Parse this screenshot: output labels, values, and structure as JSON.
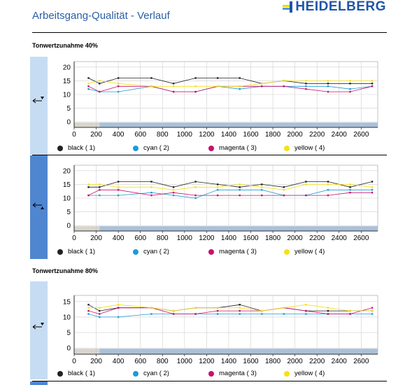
{
  "header": {
    "title": "Arbeitsgang-Qualität - Verlauf",
    "logo_text": "HEIDELBERG",
    "logo_color": "#1f56a6",
    "logo_accent_colors": [
      "#f2d70a",
      "#4f9fd8"
    ]
  },
  "legend": [
    {
      "label": "black ( 1)",
      "color": "#222222"
    },
    {
      "label": "cyan ( 2)",
      "color": "#1c9bd8"
    },
    {
      "label": "magenta ( 3)",
      "color": "#c8106e"
    },
    {
      "label": "yellow ( 4)",
      "color": "#f5e01a"
    }
  ],
  "sections": [
    {
      "title": "Tonwertzunahme 40%"
    },
    {
      "title": "Tonwertzunahme 80%"
    }
  ],
  "chart_data": [
    {
      "type": "line",
      "section": "Tonwertzunahme 40%",
      "x": [
        130,
        230,
        400,
        700,
        900,
        1100,
        1300,
        1500,
        1700,
        1900,
        2100,
        2300,
        2500,
        2700
      ],
      "xlim": [
        0,
        2750
      ],
      "ylim": [
        -2,
        22
      ],
      "xticks": [
        0,
        200,
        400,
        600,
        800,
        1000,
        1200,
        1400,
        1600,
        1800,
        2000,
        2200,
        2400,
        2600
      ],
      "yticks": [
        0,
        5,
        10,
        15,
        20
      ],
      "grid": true,
      "series": [
        {
          "name": "black ( 1)",
          "color": "#222222",
          "values": [
            16,
            14,
            16,
            16,
            14,
            16,
            16,
            16,
            14,
            15,
            14,
            14,
            14,
            14
          ]
        },
        {
          "name": "cyan ( 2)",
          "color": "#1c9bd8",
          "values": [
            12,
            11,
            11,
            13,
            11,
            11,
            13,
            12,
            13,
            13,
            13,
            13,
            12,
            13
          ]
        },
        {
          "name": "magenta ( 3)",
          "color": "#c8106e",
          "values": [
            13,
            11,
            13,
            13,
            11,
            11,
            13,
            13,
            13,
            13,
            12,
            11,
            11,
            13
          ]
        },
        {
          "name": "yellow ( 4)",
          "color": "#f5e01a",
          "values": [
            14,
            15,
            14,
            13,
            13,
            13,
            13,
            13,
            14,
            15,
            15,
            15,
            15,
            15
          ]
        }
      ]
    },
    {
      "type": "line",
      "section": "Tonwertzunahme 40%",
      "x": [
        130,
        230,
        400,
        700,
        900,
        1100,
        1300,
        1500,
        1700,
        1900,
        2100,
        2300,
        2500,
        2700
      ],
      "xlim": [
        0,
        2750
      ],
      "ylim": [
        -2,
        22
      ],
      "xticks": [
        0,
        200,
        400,
        600,
        800,
        1000,
        1200,
        1400,
        1600,
        1800,
        2000,
        2200,
        2400,
        2600
      ],
      "yticks": [
        0,
        5,
        10,
        15,
        20
      ],
      "grid": true,
      "series": [
        {
          "name": "black ( 1)",
          "color": "#222222",
          "values": [
            14,
            14,
            16,
            16,
            14,
            16,
            15,
            14,
            15,
            14,
            16,
            16,
            14,
            16
          ]
        },
        {
          "name": "cyan ( 2)",
          "color": "#1c9bd8",
          "values": [
            11,
            11,
            11,
            12,
            11,
            10,
            13,
            13,
            13,
            11,
            11,
            13,
            13,
            13
          ]
        },
        {
          "name": "magenta ( 3)",
          "color": "#c8106e",
          "values": [
            11,
            13,
            13,
            11,
            12,
            11,
            11,
            11,
            11,
            11,
            11,
            11,
            12,
            12
          ]
        },
        {
          "name": "yellow ( 4)",
          "color": "#f5e01a",
          "values": [
            15,
            15,
            14,
            14,
            13,
            14,
            14,
            15,
            14,
            13,
            15,
            15,
            15,
            14
          ]
        }
      ]
    },
    {
      "type": "line",
      "section": "Tonwertzunahme 80%",
      "x": [
        130,
        230,
        400,
        700,
        900,
        1100,
        1300,
        1500,
        1700,
        1900,
        2100,
        2300,
        2500,
        2700
      ],
      "xlim": [
        0,
        2750
      ],
      "ylim": [
        -2,
        17
      ],
      "xticks": [
        0,
        200,
        400,
        600,
        800,
        1000,
        1200,
        1400,
        1600,
        1800,
        2000,
        2200,
        2400,
        2600
      ],
      "yticks": [
        0,
        5,
        10,
        15
      ],
      "grid": true,
      "series": [
        {
          "name": "black ( 1)",
          "color": "#222222",
          "values": [
            14,
            12,
            13,
            13,
            12,
            13,
            13,
            14,
            12,
            13,
            12,
            12,
            12,
            12
          ]
        },
        {
          "name": "cyan ( 2)",
          "color": "#1c9bd8",
          "values": [
            11,
            10,
            10,
            11,
            11,
            11,
            11,
            11,
            11,
            11,
            11,
            11,
            11,
            11
          ]
        },
        {
          "name": "magenta ( 3)",
          "color": "#c8106e",
          "values": [
            12,
            11,
            13,
            13,
            11,
            11,
            12,
            12,
            12,
            13,
            12,
            11,
            11,
            13
          ]
        },
        {
          "name": "yellow ( 4)",
          "color": "#f5e01a",
          "values": [
            13,
            13,
            14,
            13,
            12,
            13,
            13,
            13,
            12,
            13,
            14,
            13,
            12,
            12
          ]
        }
      ]
    }
  ]
}
